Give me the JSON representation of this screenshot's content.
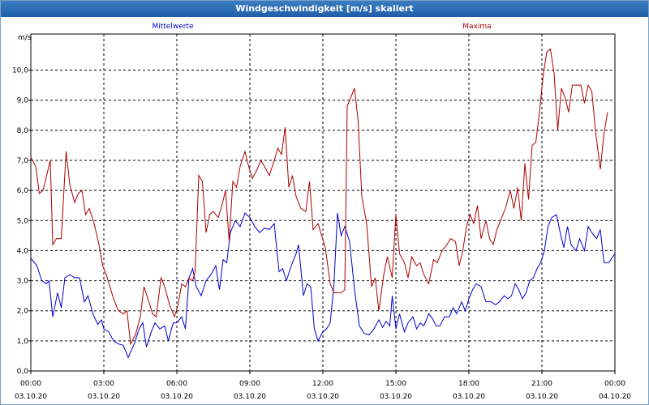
{
  "window": {
    "title": "Windgeschwindigkeit [m/s] skaliert"
  },
  "chart_data": {
    "type": "line",
    "ylabel": "m/s",
    "ylim": [
      0,
      11.2
    ],
    "xlim": [
      0,
      24
    ],
    "grid": true,
    "legend_placement": "top",
    "y_ticks": [
      "0,0",
      "1,0",
      "2,0",
      "3,0",
      "4,0",
      "5,0",
      "6,0",
      "7,0",
      "8,0",
      "9,0",
      "10,0"
    ],
    "y_tick_values": [
      0,
      1,
      2,
      3,
      4,
      5,
      6,
      7,
      8,
      9,
      10
    ],
    "x_ticks": [
      {
        "time": "00:00",
        "date": "03.10.20",
        "hour": 0
      },
      {
        "time": "03:00",
        "date": "03.10.20",
        "hour": 3
      },
      {
        "time": "06:00",
        "date": "03.10.20",
        "hour": 6
      },
      {
        "time": "09:00",
        "date": "03.10.20",
        "hour": 9
      },
      {
        "time": "12:00",
        "date": "03.10.20",
        "hour": 12
      },
      {
        "time": "15:00",
        "date": "03.10.20",
        "hour": 15
      },
      {
        "time": "18:00",
        "date": "03.10.20",
        "hour": 18
      },
      {
        "time": "21:00",
        "date": "03.10.20",
        "hour": 21
      },
      {
        "time": "00:00",
        "date": "04.10.20",
        "hour": 24
      }
    ],
    "series": [
      {
        "name": "Mittelwerte",
        "color": "#0000cc",
        "points": [
          [
            0.0,
            3.75
          ],
          [
            0.25,
            3.5
          ],
          [
            0.45,
            3.0
          ],
          [
            0.65,
            2.9
          ],
          [
            0.75,
            3.0
          ],
          [
            0.9,
            1.8
          ],
          [
            1.1,
            2.6
          ],
          [
            1.25,
            2.1
          ],
          [
            1.4,
            3.1
          ],
          [
            1.6,
            3.2
          ],
          [
            1.8,
            3.1
          ],
          [
            2.0,
            3.1
          ],
          [
            2.2,
            2.3
          ],
          [
            2.35,
            2.5
          ],
          [
            2.55,
            1.9
          ],
          [
            2.75,
            1.55
          ],
          [
            2.9,
            1.7
          ],
          [
            3.0,
            1.4
          ],
          [
            3.2,
            1.3
          ],
          [
            3.4,
            1.0
          ],
          [
            3.6,
            0.9
          ],
          [
            3.8,
            0.85
          ],
          [
            4.0,
            0.45
          ],
          [
            4.25,
            0.9
          ],
          [
            4.45,
            1.4
          ],
          [
            4.6,
            1.6
          ],
          [
            4.75,
            0.8
          ],
          [
            4.95,
            1.3
          ],
          [
            5.1,
            1.6
          ],
          [
            5.3,
            1.4
          ],
          [
            5.5,
            1.5
          ],
          [
            5.65,
            1.0
          ],
          [
            5.85,
            1.6
          ],
          [
            6.0,
            1.6
          ],
          [
            6.2,
            1.8
          ],
          [
            6.35,
            1.4
          ],
          [
            6.5,
            3.1
          ],
          [
            6.65,
            3.4
          ],
          [
            6.8,
            2.8
          ],
          [
            7.0,
            2.5
          ],
          [
            7.2,
            3.0
          ],
          [
            7.4,
            3.2
          ],
          [
            7.6,
            3.5
          ],
          [
            7.75,
            2.7
          ],
          [
            7.9,
            3.7
          ],
          [
            8.05,
            3.6
          ],
          [
            8.2,
            4.6
          ],
          [
            8.4,
            5.0
          ],
          [
            8.6,
            4.8
          ],
          [
            8.8,
            5.25
          ],
          [
            9.0,
            5.1
          ],
          [
            9.2,
            4.8
          ],
          [
            9.4,
            4.6
          ],
          [
            9.6,
            4.75
          ],
          [
            9.8,
            4.7
          ],
          [
            10.0,
            4.9
          ],
          [
            10.2,
            3.3
          ],
          [
            10.35,
            3.4
          ],
          [
            10.5,
            3.0
          ],
          [
            10.7,
            3.5
          ],
          [
            10.9,
            3.9
          ],
          [
            11.0,
            4.2
          ],
          [
            11.2,
            2.5
          ],
          [
            11.35,
            2.9
          ],
          [
            11.5,
            2.8
          ],
          [
            11.65,
            1.4
          ],
          [
            11.8,
            1.0
          ],
          [
            12.0,
            1.3
          ],
          [
            12.15,
            1.4
          ],
          [
            12.3,
            1.6
          ],
          [
            12.45,
            2.8
          ],
          [
            12.6,
            5.25
          ],
          [
            12.75,
            4.5
          ],
          [
            12.9,
            4.8
          ],
          [
            13.1,
            4.3
          ],
          [
            13.3,
            2.7
          ],
          [
            13.5,
            1.5
          ],
          [
            13.7,
            1.25
          ],
          [
            13.9,
            1.2
          ],
          [
            14.1,
            1.4
          ],
          [
            14.3,
            1.7
          ],
          [
            14.45,
            1.45
          ],
          [
            14.6,
            1.65
          ],
          [
            14.75,
            1.5
          ],
          [
            14.85,
            2.5
          ],
          [
            15.0,
            1.4
          ],
          [
            15.15,
            1.9
          ],
          [
            15.35,
            1.3
          ],
          [
            15.5,
            1.6
          ],
          [
            15.7,
            1.8
          ],
          [
            15.85,
            1.4
          ],
          [
            16.0,
            1.6
          ],
          [
            16.15,
            1.5
          ],
          [
            16.35,
            1.9
          ],
          [
            16.5,
            1.75
          ],
          [
            16.65,
            1.5
          ],
          [
            16.8,
            1.5
          ],
          [
            17.0,
            1.8
          ],
          [
            17.2,
            1.8
          ],
          [
            17.35,
            2.1
          ],
          [
            17.5,
            1.9
          ],
          [
            17.7,
            2.3
          ],
          [
            17.85,
            2.0
          ],
          [
            18.0,
            2.4
          ],
          [
            18.15,
            2.7
          ],
          [
            18.3,
            2.9
          ],
          [
            18.5,
            2.8
          ],
          [
            18.7,
            2.3
          ],
          [
            18.9,
            2.3
          ],
          [
            19.1,
            2.2
          ],
          [
            19.25,
            2.3
          ],
          [
            19.45,
            2.5
          ],
          [
            19.6,
            2.4
          ],
          [
            19.75,
            2.5
          ],
          [
            19.9,
            2.9
          ],
          [
            20.05,
            2.7
          ],
          [
            20.2,
            2.4
          ],
          [
            20.35,
            2.6
          ],
          [
            20.5,
            3.0
          ],
          [
            20.65,
            3.1
          ],
          [
            20.8,
            3.4
          ],
          [
            20.95,
            3.6
          ],
          [
            21.1,
            4.0
          ],
          [
            21.25,
            4.8
          ],
          [
            21.4,
            5.1
          ],
          [
            21.6,
            5.2
          ],
          [
            21.75,
            4.6
          ],
          [
            21.9,
            4.1
          ],
          [
            22.05,
            4.8
          ],
          [
            22.2,
            4.2
          ],
          [
            22.4,
            4.0
          ],
          [
            22.55,
            4.4
          ],
          [
            22.75,
            4.0
          ],
          [
            22.9,
            4.8
          ],
          [
            23.05,
            4.6
          ],
          [
            23.25,
            4.4
          ],
          [
            23.4,
            4.7
          ],
          [
            23.55,
            3.6
          ],
          [
            23.75,
            3.6
          ],
          [
            24.0,
            3.9
          ]
        ]
      },
      {
        "name": "Maxima",
        "color": "#aa0000",
        "points": [
          [
            0.0,
            7.1
          ],
          [
            0.2,
            6.8
          ],
          [
            0.35,
            5.9
          ],
          [
            0.5,
            6.0
          ],
          [
            0.65,
            6.5
          ],
          [
            0.8,
            7.0
          ],
          [
            0.9,
            4.2
          ],
          [
            1.05,
            4.4
          ],
          [
            1.25,
            4.4
          ],
          [
            1.45,
            7.3
          ],
          [
            1.6,
            6.2
          ],
          [
            1.8,
            5.6
          ],
          [
            1.95,
            5.9
          ],
          [
            2.1,
            6.0
          ],
          [
            2.25,
            5.2
          ],
          [
            2.4,
            5.4
          ],
          [
            2.6,
            4.9
          ],
          [
            2.8,
            4.2
          ],
          [
            2.95,
            3.5
          ],
          [
            3.1,
            3.2
          ],
          [
            3.25,
            2.8
          ],
          [
            3.4,
            2.4
          ],
          [
            3.6,
            2.0
          ],
          [
            3.8,
            1.9
          ],
          [
            3.95,
            2.0
          ],
          [
            4.1,
            0.9
          ],
          [
            4.3,
            1.2
          ],
          [
            4.5,
            1.8
          ],
          [
            4.65,
            2.8
          ],
          [
            4.85,
            2.3
          ],
          [
            5.0,
            1.9
          ],
          [
            5.15,
            1.8
          ],
          [
            5.35,
            3.1
          ],
          [
            5.5,
            2.8
          ],
          [
            5.7,
            2.2
          ],
          [
            5.9,
            1.8
          ],
          [
            6.05,
            2.2
          ],
          [
            6.2,
            2.9
          ],
          [
            6.35,
            2.8
          ],
          [
            6.5,
            3.1
          ],
          [
            6.65,
            3.0
          ],
          [
            6.75,
            3.3
          ],
          [
            6.9,
            6.5
          ],
          [
            7.05,
            6.3
          ],
          [
            7.2,
            4.6
          ],
          [
            7.35,
            5.2
          ],
          [
            7.5,
            5.3
          ],
          [
            7.7,
            5.1
          ],
          [
            7.85,
            5.5
          ],
          [
            8.0,
            6.0
          ],
          [
            8.15,
            4.3
          ],
          [
            8.3,
            6.3
          ],
          [
            8.45,
            6.1
          ],
          [
            8.6,
            6.8
          ],
          [
            8.8,
            7.3
          ],
          [
            8.95,
            6.8
          ],
          [
            9.1,
            6.4
          ],
          [
            9.3,
            6.7
          ],
          [
            9.45,
            7.0
          ],
          [
            9.6,
            6.8
          ],
          [
            9.8,
            6.5
          ],
          [
            10.0,
            7.0
          ],
          [
            10.15,
            7.4
          ],
          [
            10.3,
            7.2
          ],
          [
            10.45,
            8.1
          ],
          [
            10.6,
            6.1
          ],
          [
            10.75,
            6.5
          ],
          [
            10.9,
            5.8
          ],
          [
            11.1,
            5.4
          ],
          [
            11.3,
            5.3
          ],
          [
            11.45,
            6.3
          ],
          [
            11.6,
            4.7
          ],
          [
            11.8,
            4.9
          ],
          [
            11.95,
            4.5
          ],
          [
            12.1,
            4.1
          ],
          [
            12.3,
            2.9
          ],
          [
            12.45,
            2.6
          ],
          [
            12.6,
            2.6
          ],
          [
            12.75,
            2.6
          ],
          [
            12.9,
            2.7
          ],
          [
            13.0,
            8.8
          ],
          [
            13.15,
            9.1
          ],
          [
            13.3,
            9.4
          ],
          [
            13.45,
            8.3
          ],
          [
            13.6,
            5.8
          ],
          [
            13.8,
            4.9
          ],
          [
            14.0,
            2.8
          ],
          [
            14.15,
            3.1
          ],
          [
            14.3,
            2.0
          ],
          [
            14.5,
            3.2
          ],
          [
            14.65,
            3.8
          ],
          [
            14.85,
            3.1
          ],
          [
            15.0,
            5.2
          ],
          [
            15.15,
            3.9
          ],
          [
            15.35,
            3.6
          ],
          [
            15.5,
            3.1
          ],
          [
            15.65,
            3.8
          ],
          [
            15.85,
            3.5
          ],
          [
            16.0,
            3.6
          ],
          [
            16.15,
            3.2
          ],
          [
            16.35,
            2.9
          ],
          [
            16.55,
            3.7
          ],
          [
            16.7,
            3.6
          ],
          [
            16.9,
            4.0
          ],
          [
            17.1,
            4.2
          ],
          [
            17.25,
            4.4
          ],
          [
            17.45,
            4.3
          ],
          [
            17.6,
            3.5
          ],
          [
            17.75,
            4.0
          ],
          [
            17.9,
            4.8
          ],
          [
            18.05,
            5.2
          ],
          [
            18.2,
            4.9
          ],
          [
            18.35,
            5.5
          ],
          [
            18.5,
            4.4
          ],
          [
            18.7,
            5.0
          ],
          [
            18.85,
            4.4
          ],
          [
            19.0,
            4.2
          ],
          [
            19.15,
            4.7
          ],
          [
            19.35,
            5.1
          ],
          [
            19.5,
            5.4
          ],
          [
            19.7,
            6.0
          ],
          [
            19.85,
            5.4
          ],
          [
            20.0,
            6.1
          ],
          [
            20.15,
            5.0
          ],
          [
            20.3,
            6.9
          ],
          [
            20.45,
            5.7
          ],
          [
            20.6,
            7.5
          ],
          [
            20.75,
            7.6
          ],
          [
            20.9,
            8.6
          ],
          [
            21.05,
            9.8
          ],
          [
            21.2,
            10.6
          ],
          [
            21.35,
            10.7
          ],
          [
            21.5,
            9.9
          ],
          [
            21.65,
            8.0
          ],
          [
            21.8,
            9.4
          ],
          [
            21.95,
            9.1
          ],
          [
            22.1,
            8.6
          ],
          [
            22.25,
            9.5
          ],
          [
            22.45,
            9.5
          ],
          [
            22.6,
            9.5
          ],
          [
            22.75,
            8.9
          ],
          [
            22.9,
            9.5
          ],
          [
            23.05,
            9.3
          ],
          [
            23.2,
            8.0
          ],
          [
            23.4,
            6.7
          ],
          [
            23.55,
            7.9
          ],
          [
            23.7,
            8.6
          ]
        ]
      }
    ]
  }
}
